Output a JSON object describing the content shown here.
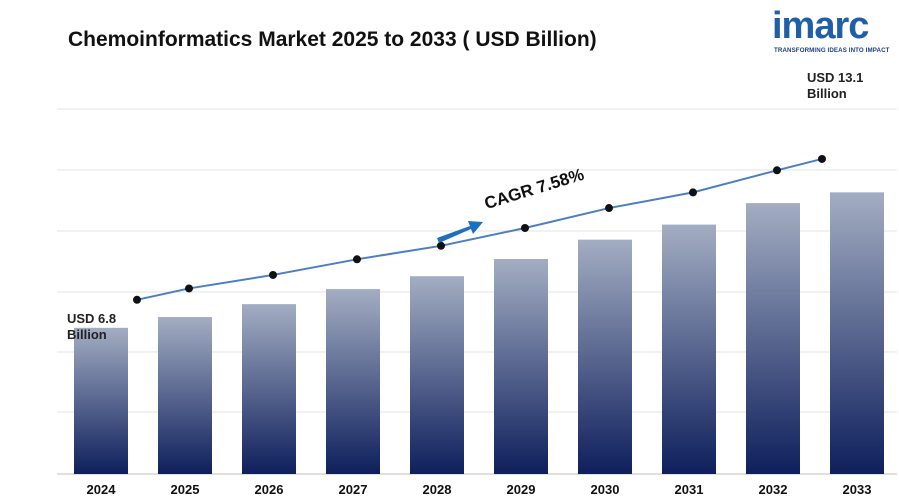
{
  "title": "Chemoinformatics Market 2025 to 2033 ( USD Billion)",
  "logo": {
    "name": "imarc",
    "tagline": "TRANSFORMING IDEAS INTO IMPACT"
  },
  "colors": {
    "bar_top": "#a3adc2",
    "bar_bottom": "#0e1f5c",
    "line": "#4a7fc1",
    "marker": "#111111",
    "arrow": "#1f6fc0",
    "grid": "#e3e3e3"
  },
  "annotations": {
    "start": [
      "USD 6.8",
      "Billion"
    ],
    "end": [
      "USD 13.1",
      "Billion"
    ],
    "cagr": "CAGR 7.58%"
  },
  "chart_data": {
    "type": "bar",
    "title": "Chemoinformatics Market 2025 to 2033 ( USD Billion)",
    "categories": [
      "2024",
      "2025",
      "2026",
      "2027",
      "2028",
      "2029",
      "2030",
      "2031",
      "2032",
      "2033"
    ],
    "values": [
      6.8,
      7.3,
      7.9,
      8.6,
      9.2,
      10.0,
      10.9,
      11.6,
      12.6,
      13.1
    ],
    "ylim": [
      0,
      16
    ],
    "grid": true,
    "legend": "none",
    "trend_line": true
  }
}
